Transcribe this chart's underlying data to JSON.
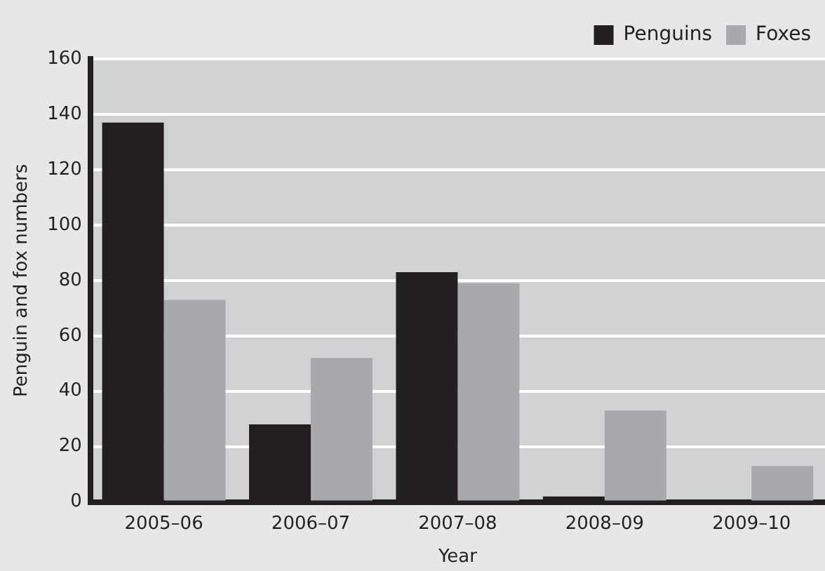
{
  "chart_data": {
    "type": "bar",
    "xlabel": "Year",
    "ylabel": "Penguin and fox numbers",
    "categories": [
      "2005–06",
      "2006–07",
      "2007–08",
      "2008–09",
      "2009–10"
    ],
    "series": [
      {
        "name": "Penguins",
        "color": "#231f20",
        "values": [
          137,
          28,
          83,
          2,
          0
        ]
      },
      {
        "name": "Foxes",
        "color": "#a7a9ac",
        "values": [
          73,
          52,
          79,
          33,
          13
        ]
      }
    ],
    "ylim": [
      0,
      160
    ],
    "yticks": [
      0,
      20,
      40,
      60,
      80,
      100,
      120,
      140,
      160
    ],
    "grid": "y",
    "legend": "top right"
  }
}
